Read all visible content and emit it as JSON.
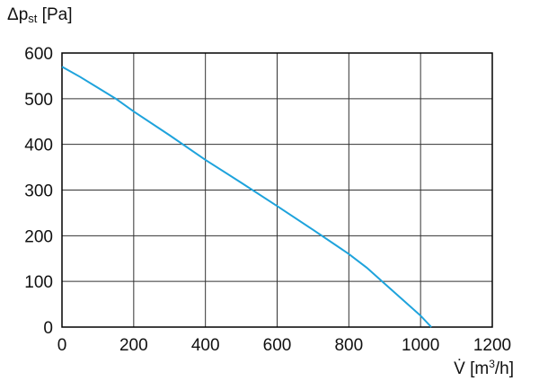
{
  "chart_data": {
    "type": "line",
    "ylabel_parts": [
      "Δp",
      "st",
      " [Pa]"
    ],
    "xlabel_parts": [
      "V̇ [m",
      "3",
      "/h]"
    ],
    "series": [
      {
        "color": "#1ea3dc",
        "x": [
          0,
          50,
          100,
          150,
          200,
          300,
          400,
          500,
          600,
          700,
          800,
          850,
          900,
          950,
          1000,
          1030
        ],
        "values": [
          570,
          548,
          524,
          500,
          472,
          420,
          366,
          316,
          265,
          213,
          160,
          130,
          95,
          60,
          25,
          0
        ]
      }
    ],
    "xlim": [
      0,
      1200
    ],
    "xticks": [
      0,
      200,
      400,
      600,
      800,
      1000,
      1200
    ],
    "ylim": [
      0,
      600
    ],
    "yticks": [
      0,
      100,
      200,
      300,
      400,
      500,
      600
    ],
    "grid": true
  }
}
